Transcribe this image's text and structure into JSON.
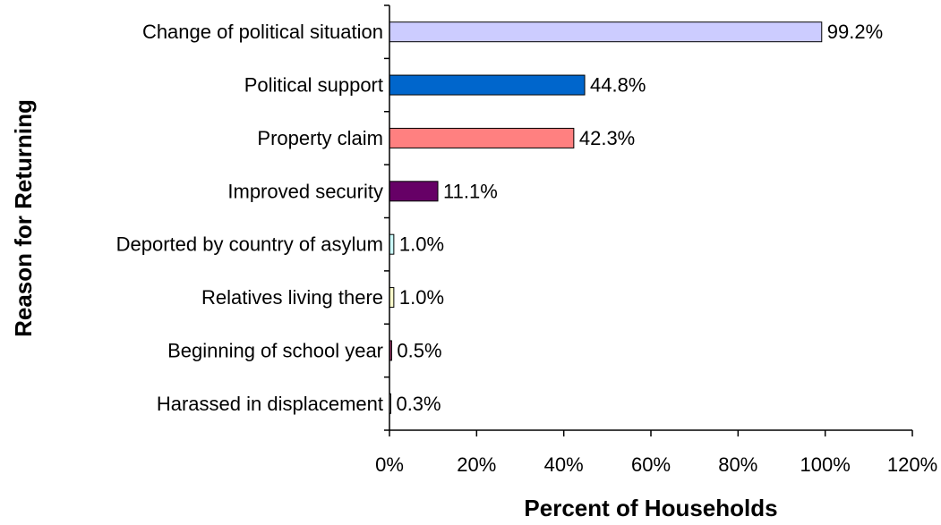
{
  "chart_data": {
    "type": "bar",
    "orientation": "horizontal",
    "categories": [
      "Change of political situation",
      "Political support",
      "Property claim",
      "Improved security",
      "Deported by country of asylum",
      "Relatives living there",
      "Beginning of school year",
      "Harassed in displacement"
    ],
    "values": [
      99.2,
      44.8,
      42.3,
      11.1,
      1.0,
      1.0,
      0.5,
      0.3
    ],
    "value_labels": [
      "99.2%",
      "44.8%",
      "42.3%",
      "11.1%",
      "1.0%",
      "1.0%",
      "0.5%",
      "0.3%"
    ],
    "bar_colors": [
      "#CCCCFF",
      "#0066CC",
      "#FF8080",
      "#660066",
      "#CCFFFF",
      "#FFFFCC",
      "#993366",
      "#FFFFFF"
    ],
    "xlim": [
      0,
      120
    ],
    "xticks": [
      0,
      20,
      40,
      60,
      80,
      100,
      120
    ],
    "xtick_labels": [
      "0%",
      "20%",
      "40%",
      "60%",
      "80%",
      "100%",
      "120%"
    ],
    "xlabel": "Percent of Households",
    "ylabel": "Reason for Returning",
    "title": "",
    "grid": false,
    "legend": "none"
  }
}
